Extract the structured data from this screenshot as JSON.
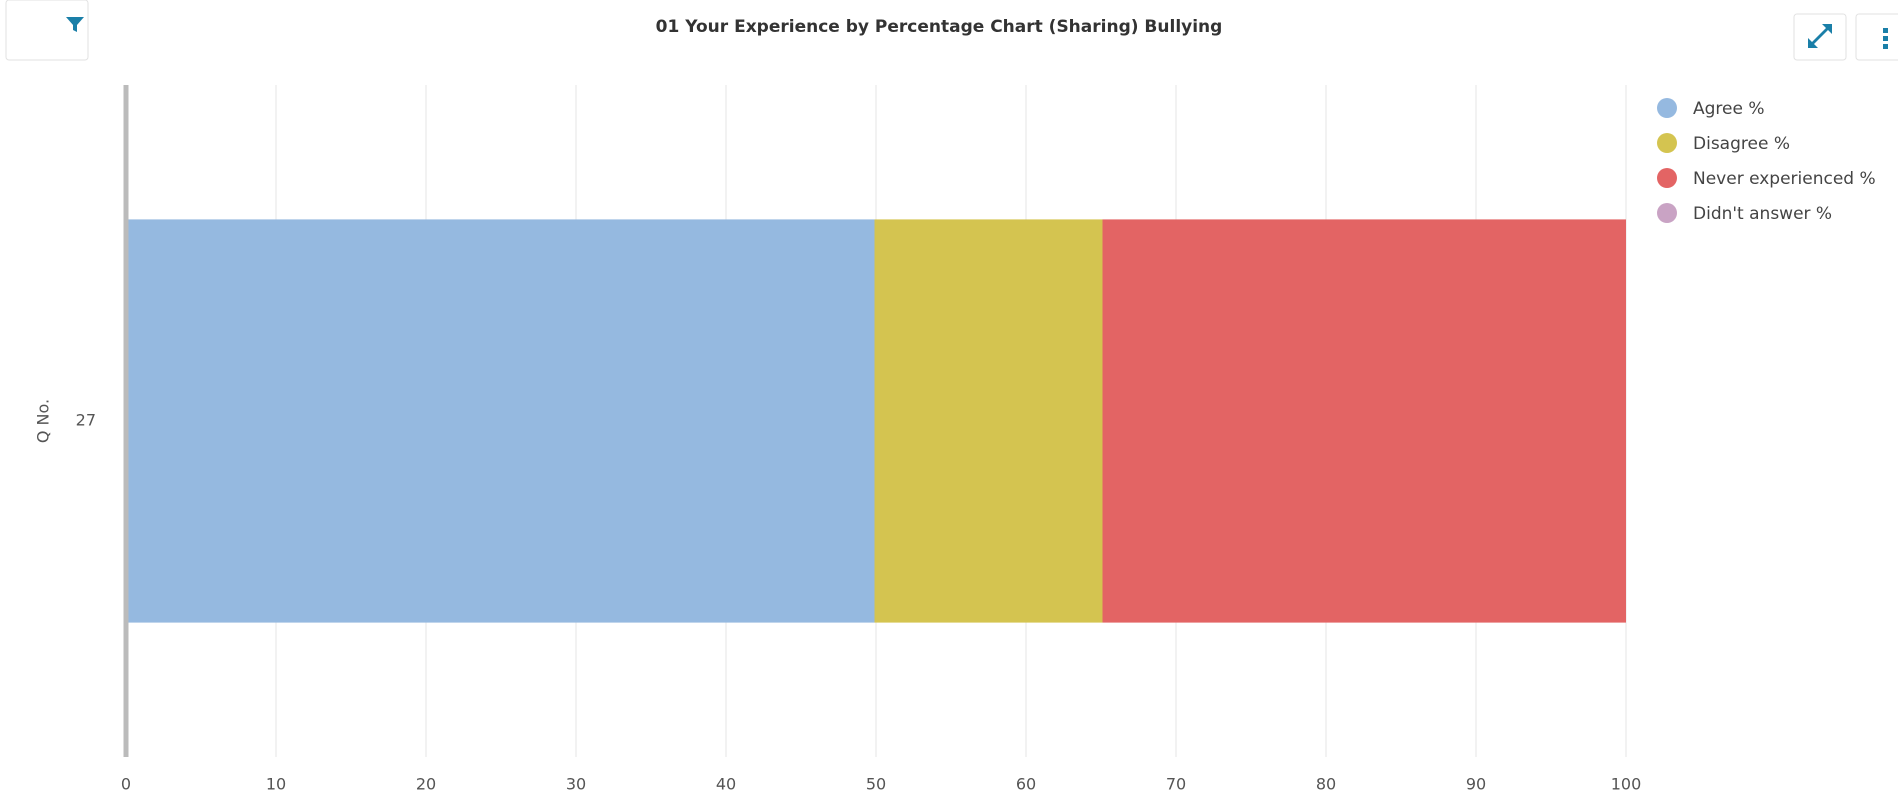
{
  "chart_data": {
    "type": "bar",
    "orientation": "horizontal",
    "stacked": true,
    "title": "01 Your Experience by Percentage Chart (Sharing) Bullying",
    "y_label": "Q No.",
    "categories": [
      "27"
    ],
    "series": [
      {
        "name": "Agree %",
        "color": "#95b9e0",
        "values": [
          49.9
        ]
      },
      {
        "name": "Disagree %",
        "color": "#d4c450",
        "values": [
          15.2
        ]
      },
      {
        "name": "Never experienced %",
        "color": "#e36464",
        "values": [
          34.9
        ]
      },
      {
        "name": "Didn't answer %",
        "color": "#c9a3c4",
        "values": [
          0
        ]
      }
    ],
    "xlim": [
      0,
      100
    ],
    "xticks": [
      0,
      10,
      20,
      30,
      40,
      50,
      60,
      70,
      80,
      90,
      100
    ],
    "grid": true,
    "legend": "top-right"
  }
}
